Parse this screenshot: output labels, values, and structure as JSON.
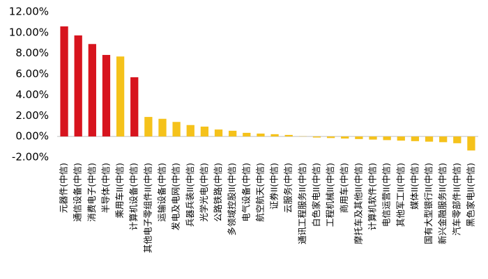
{
  "chart_data": {
    "type": "bar",
    "categories": [
      "元器件(中信)",
      "通信设备(中信)",
      "消费电子(中信)",
      "半导体(中信)",
      "乘用车II(中信)",
      "计算机设备(中信)",
      "其他电子零组件II(中信)",
      "运输设备(中信)",
      "发电及电网(中信)",
      "兵器兵装II(中信)",
      "光学光电(中信)",
      "公路铁路(中信)",
      "多领域控股II(中信)",
      "电气设备(中信)",
      "航空航天(中信)",
      "证券II(中信)",
      "云服务(中信)",
      "通讯工程服务II(中信)",
      "白色家电II(中信)",
      "工程机械II(中信)",
      "商用车(中信)",
      "摩托车及其他II(中信)",
      "计算机软件(中信)",
      "电信运营II(中信)",
      "其他军工II(中信)",
      "媒体II(中信)",
      "国有大型银行II(中信)",
      "新兴金融服务II(中信)",
      "汽车零部件II(中信)",
      "黑色家电II(中信)"
    ],
    "values": [
      10.6,
      9.73,
      8.9,
      7.85,
      7.7,
      5.7,
      1.88,
      1.7,
      1.4,
      1.1,
      0.95,
      0.67,
      0.55,
      0.35,
      0.28,
      0.22,
      0.15,
      0.02,
      -0.1,
      -0.15,
      -0.2,
      -0.25,
      -0.3,
      -0.35,
      -0.4,
      -0.45,
      -0.5,
      -0.55,
      -0.65,
      -1.35
    ],
    "colors": [
      "#d7141e",
      "#d7141e",
      "#d7141e",
      "#d7141e",
      "#f5c21b",
      "#d7141e",
      "#f5c21b",
      "#f5c21b",
      "#f5c21b",
      "#f5c21b",
      "#f5c21b",
      "#f5c21b",
      "#f5c21b",
      "#f5c21b",
      "#f5c21b",
      "#f5c21b",
      "#f5c21b",
      "#f5c21b",
      "#f5c21b",
      "#f5c21b",
      "#f5c21b",
      "#f5c21b",
      "#f5c21b",
      "#f5c21b",
      "#f5c21b",
      "#f5c21b",
      "#f5c21b",
      "#f5c21b",
      "#f5c21b",
      "#f5c21b"
    ],
    "ylim": [
      -2,
      12
    ],
    "yticks": [
      {
        "value": -2,
        "label": "-2.00%"
      },
      {
        "value": 0,
        "label": "0.00%"
      },
      {
        "value": 2,
        "label": "2.00%"
      },
      {
        "value": 4,
        "label": "4.00%"
      },
      {
        "value": 6,
        "label": "6.00%"
      },
      {
        "value": 8,
        "label": "8.00%"
      },
      {
        "value": 10,
        "label": "10.00%"
      },
      {
        "value": 12,
        "label": "12.00%"
      }
    ],
    "grid": false
  }
}
